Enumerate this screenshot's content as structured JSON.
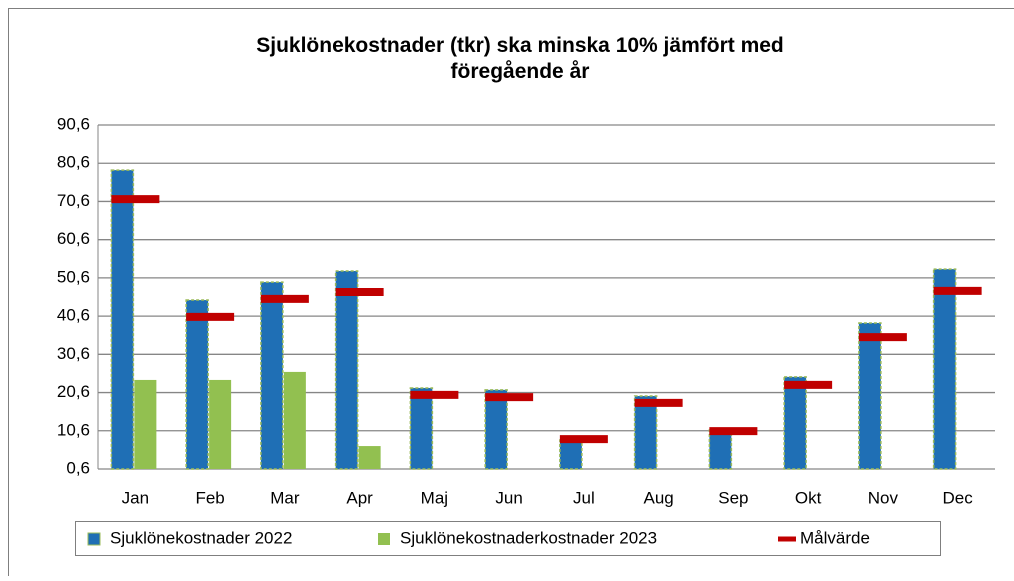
{
  "chart_data": {
    "type": "bar",
    "title": "Sjuklönekostnader (tkr) ska minska 10% jämfört med föregående år",
    "categories": [
      "Jan",
      "Feb",
      "Mar",
      "Apr",
      "Maj",
      "Jun",
      "Jul",
      "Aug",
      "Sep",
      "Okt",
      "Nov",
      "Dec"
    ],
    "series": [
      {
        "name": "Sjuklönekostnader 2022",
        "color": "#1f6fb5",
        "kind": "bar",
        "values": [
          78.8,
          44.8,
          49.5,
          52.4,
          21.8,
          21.3,
          8.2,
          19.7,
          10.8,
          24.7,
          38.8,
          52.9
        ]
      },
      {
        "name": "Sjuklönekostnaderkostnader 2023",
        "color": "#92c050",
        "kind": "bar",
        "values": [
          23.9,
          23.9,
          26.0,
          6.6,
          null,
          null,
          null,
          null,
          null,
          null,
          null,
          null
        ]
      },
      {
        "name": "Målvärde",
        "color": "#c00000",
        "kind": "marker",
        "values": [
          71.2,
          40.4,
          45.1,
          46.9,
          20.0,
          19.4,
          8.4,
          17.9,
          10.5,
          22.6,
          35.1,
          47.2
        ]
      }
    ],
    "ylim": [
      0.6,
      90.6
    ],
    "yticks": [
      {
        "value": 0.6,
        "label": "0,6"
      },
      {
        "value": 10.6,
        "label": "10,6"
      },
      {
        "value": 20.6,
        "label": "20,6"
      },
      {
        "value": 30.6,
        "label": "30,6"
      },
      {
        "value": 40.6,
        "label": "40,6"
      },
      {
        "value": 50.6,
        "label": "50,6"
      },
      {
        "value": 60.6,
        "label": "60,6"
      },
      {
        "value": 70.6,
        "label": "70,6"
      },
      {
        "value": 80.6,
        "label": "80,6"
      },
      {
        "value": 90.6,
        "label": "90,6"
      }
    ],
    "grid": true,
    "legend": "bottom"
  }
}
